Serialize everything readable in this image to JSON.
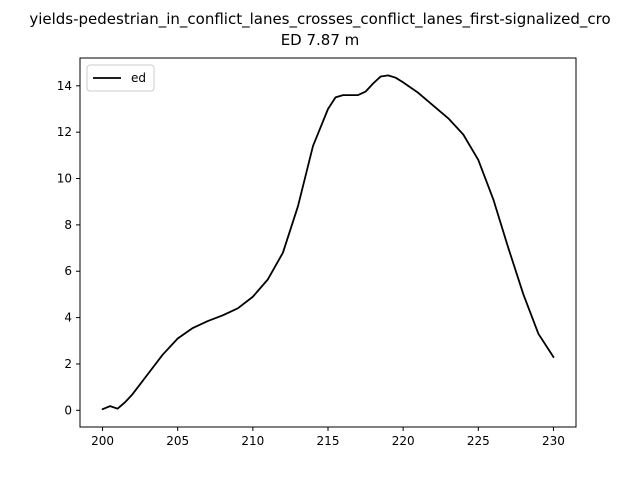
{
  "chart_data": {
    "type": "line",
    "title": "yields-pedestrian_in_conflict_lanes_crosses_conflict_lanes_first-signalized_cro",
    "subtitle": "ED 7.87 m",
    "xlabel": "",
    "ylabel": "",
    "xlim": [
      198.5,
      231.5
    ],
    "ylim": [
      -0.72,
      15.2
    ],
    "xticks": [
      200,
      205,
      210,
      215,
      220,
      225,
      230
    ],
    "yticks": [
      0,
      2,
      4,
      6,
      8,
      10,
      12,
      14
    ],
    "grid": false,
    "legend_position": "top-left",
    "series": [
      {
        "name": "ed",
        "color": "#000000",
        "x": [
          200.0,
          200.5,
          201.0,
          201.5,
          202.0,
          203.0,
          204.0,
          205.0,
          206.0,
          207.0,
          208.0,
          209.0,
          210.0,
          211.0,
          212.0,
          213.0,
          214.0,
          215.0,
          215.5,
          216.0,
          217.0,
          217.5,
          218.0,
          218.5,
          219.0,
          219.5,
          220.0,
          221.0,
          222.0,
          223.0,
          224.0,
          225.0,
          226.0,
          227.0,
          228.0,
          229.0,
          230.0
        ],
        "y": [
          0.05,
          0.18,
          0.07,
          0.35,
          0.7,
          1.55,
          2.4,
          3.1,
          3.55,
          3.85,
          4.1,
          4.4,
          4.9,
          5.65,
          6.8,
          8.8,
          11.4,
          13.0,
          13.5,
          13.6,
          13.6,
          13.75,
          14.1,
          14.4,
          14.45,
          14.35,
          14.15,
          13.7,
          13.15,
          12.6,
          11.9,
          10.8,
          9.1,
          7.0,
          5.0,
          3.3,
          2.3
        ]
      }
    ]
  }
}
